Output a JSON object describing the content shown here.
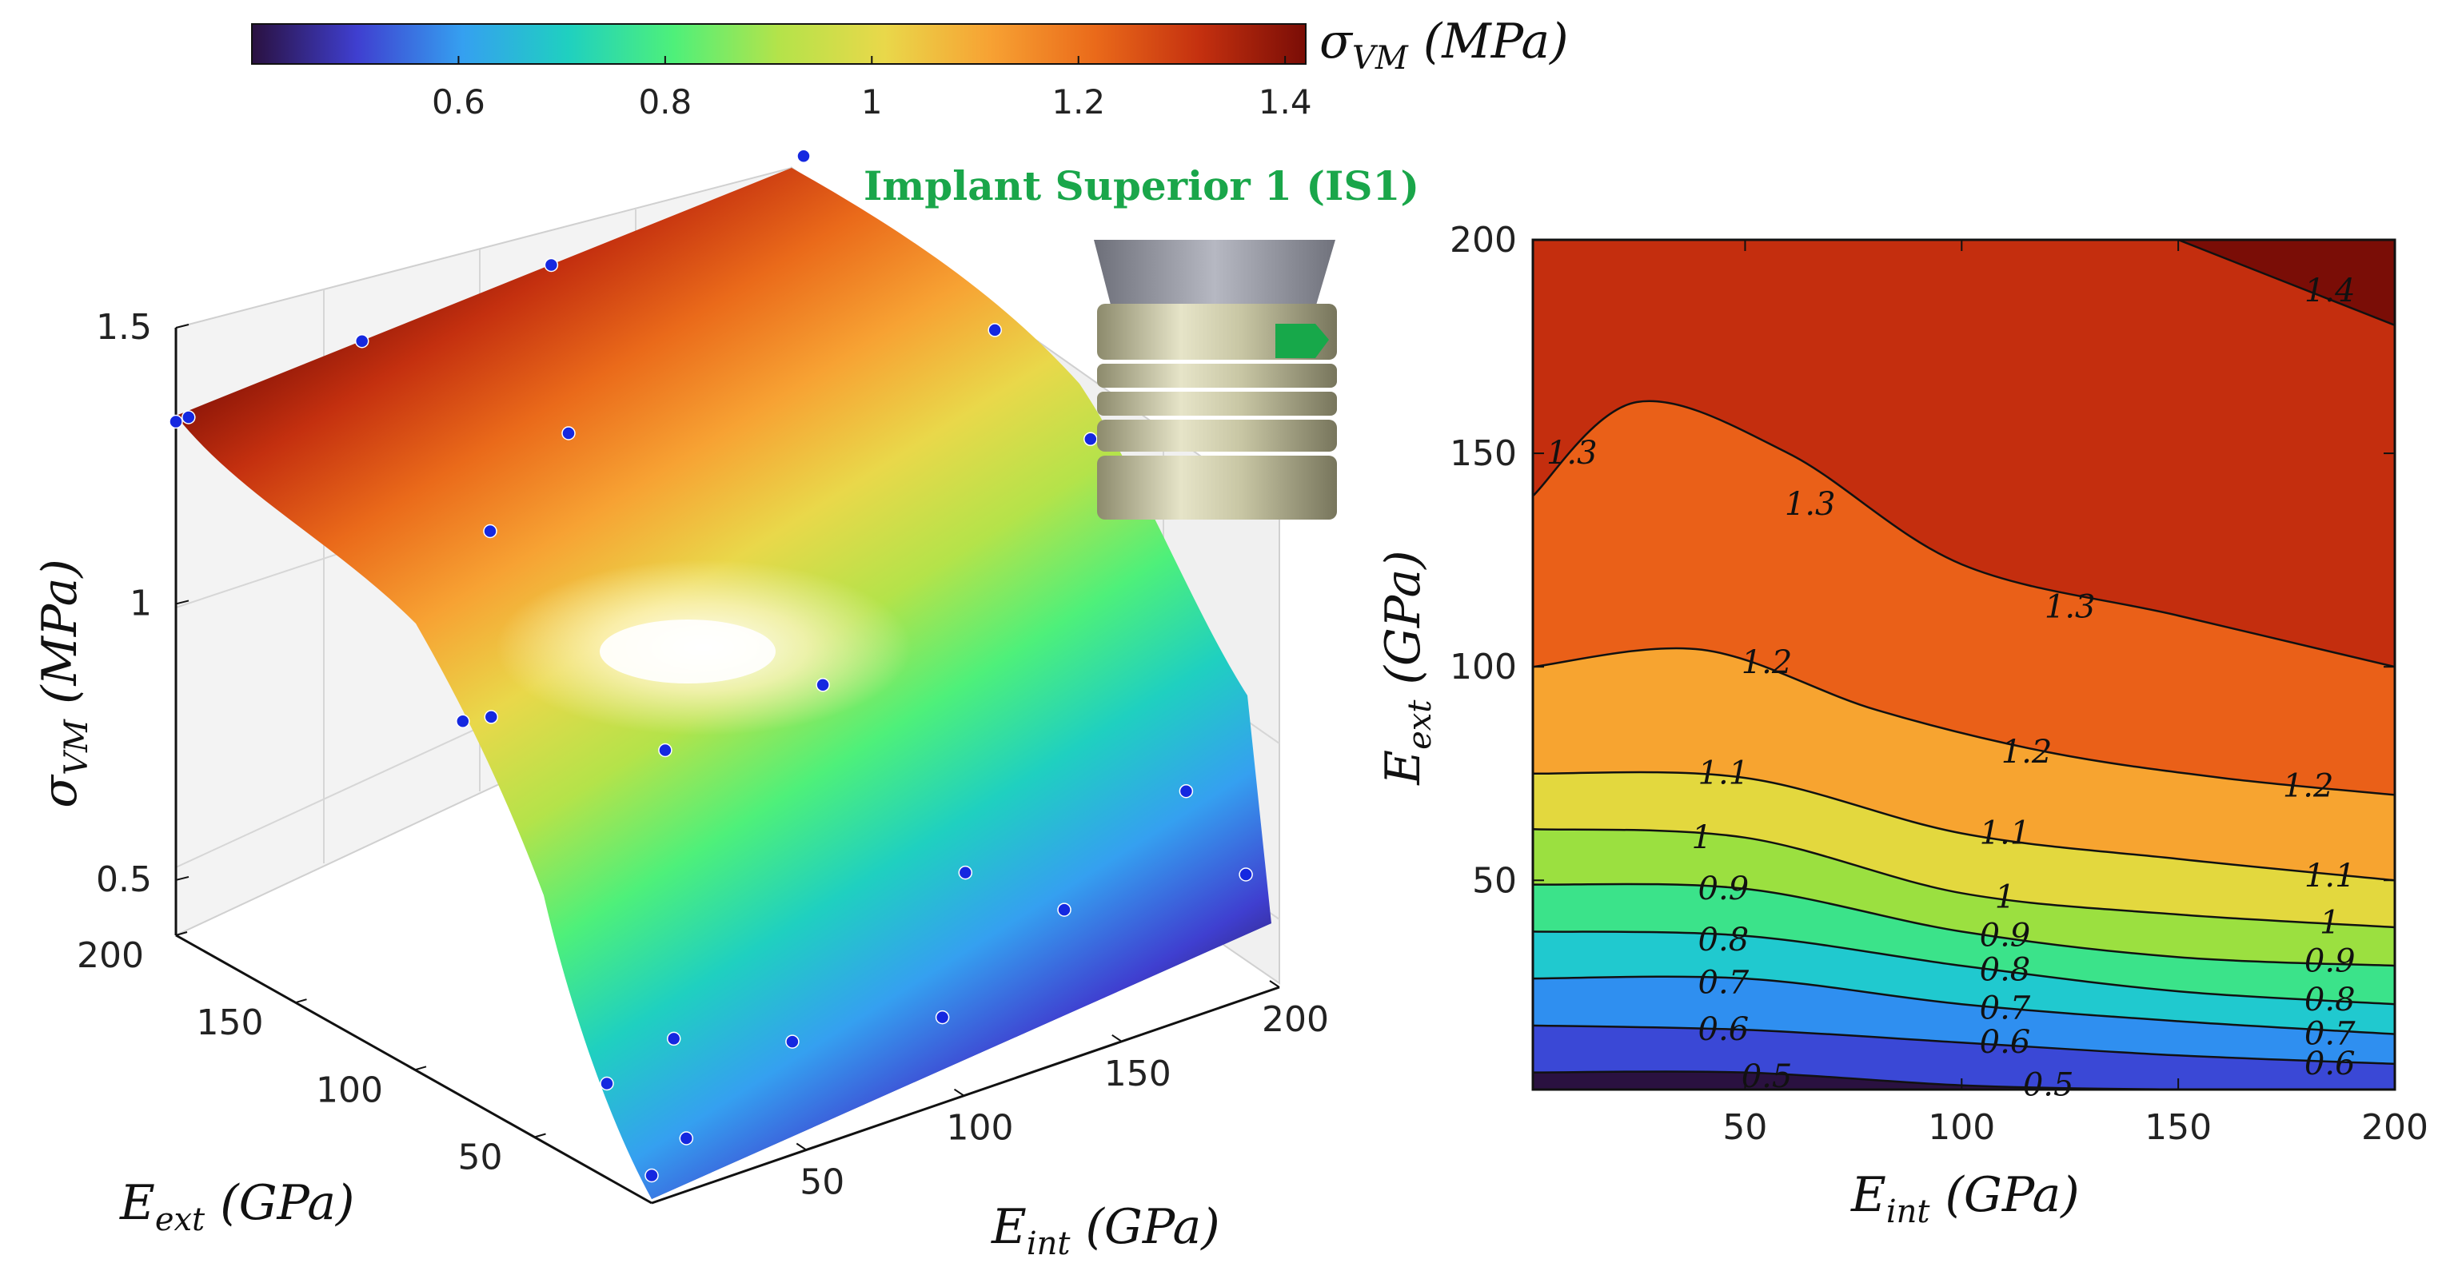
{
  "figure": {
    "colorbar": {
      "label_main": "σ",
      "label_sub": "VM",
      "label_unit": " (MPa)",
      "ticks": [
        "0.6",
        "0.8",
        "1",
        "1.2",
        "1.4"
      ],
      "tick_values": [
        0.6,
        0.8,
        1.0,
        1.2,
        1.4
      ],
      "range": [
        0.4,
        1.42
      ],
      "colormap": [
        "#2a1140",
        "#3f3fd0",
        "#35a0f0",
        "#1fd0c0",
        "#4ef07a",
        "#b4e34a",
        "#e9d84a",
        "#f7a233",
        "#ea6a1a",
        "#c4300f",
        "#7a0d06"
      ]
    },
    "inset": {
      "title": "Implant Superior 1 (IS1)",
      "title_color": "#1aa64a",
      "marker_color": "#17a84a"
    }
  },
  "chart_data": [
    {
      "type": "surface",
      "title": "",
      "xlabel_main": "E",
      "xlabel_sub": "int",
      "xlabel_unit": " (GPa)",
      "ylabel_main": "E",
      "ylabel_sub": "ext",
      "ylabel_unit": " (GPa)",
      "zlabel_main": "σ",
      "zlabel_sub": "VM",
      "zlabel_unit": " (MPa)",
      "x_ticks": [
        "50",
        "100",
        "150",
        "200"
      ],
      "x_tick_values": [
        50,
        100,
        150,
        200
      ],
      "y_ticks": [
        "50",
        "100",
        "150",
        "200"
      ],
      "y_tick_values": [
        50,
        100,
        150,
        200
      ],
      "z_ticks": [
        "0.5",
        "1",
        "1.5"
      ],
      "z_tick_values": [
        0.5,
        1.0,
        1.5
      ],
      "xlim": [
        1,
        200
      ],
      "ylim": [
        1,
        200
      ],
      "zlim": [
        0.4,
        1.5
      ],
      "sample_points": [
        {
          "x": 1,
          "y": 1,
          "z": 0.45
        },
        {
          "x": 15,
          "y": 5,
          "z": 0.48
        },
        {
          "x": 5,
          "y": 25,
          "z": 0.55
        },
        {
          "x": 30,
          "y": 30,
          "z": 0.57
        },
        {
          "x": 60,
          "y": 20,
          "z": 0.53
        },
        {
          "x": 100,
          "y": 10,
          "z": 0.52
        },
        {
          "x": 150,
          "y": 25,
          "z": 0.58
        },
        {
          "x": 200,
          "y": 15,
          "z": 0.57
        },
        {
          "x": 200,
          "y": 40,
          "z": 0.66
        },
        {
          "x": 130,
          "y": 40,
          "z": 0.65
        },
        {
          "x": 1,
          "y": 80,
          "z": 1.08
        },
        {
          "x": 10,
          "y": 80,
          "z": 1.07
        },
        {
          "x": 50,
          "y": 60,
          "z": 0.98
        },
        {
          "x": 100,
          "y": 60,
          "z": 1.0
        },
        {
          "x": 1,
          "y": 200,
          "z": 1.33
        },
        {
          "x": 5,
          "y": 200,
          "z": 1.33
        },
        {
          "x": 60,
          "y": 200,
          "z": 1.36
        },
        {
          "x": 120,
          "y": 200,
          "z": 1.38
        },
        {
          "x": 200,
          "y": 200,
          "z": 1.42
        },
        {
          "x": 200,
          "y": 120,
          "z": 1.3
        },
        {
          "x": 200,
          "y": 80,
          "z": 1.2
        },
        {
          "x": 80,
          "y": 140,
          "z": 1.3
        },
        {
          "x": 40,
          "y": 120,
          "z": 1.25
        }
      ]
    },
    {
      "type": "contour",
      "xlabel_main": "E",
      "xlabel_sub": "int",
      "xlabel_unit": " (GPa)",
      "ylabel_main": "E",
      "ylabel_sub": "ext",
      "ylabel_unit": " (GPa)",
      "x_ticks": [
        "50",
        "100",
        "150",
        "200"
      ],
      "x_tick_values": [
        50,
        100,
        150,
        200
      ],
      "y_ticks": [
        "50",
        "100",
        "150",
        "200"
      ],
      "y_tick_values": [
        50,
        100,
        150,
        200
      ],
      "xlim": [
        1,
        200
      ],
      "ylim": [
        1,
        200
      ],
      "levels": [
        {
          "level": 0.5,
          "label": "0.5",
          "fill": "#2a1140",
          "points": [
            [
              1,
              5
            ],
            [
              50,
              5
            ],
            [
              100,
              2
            ],
            [
              150,
              1
            ],
            [
              200,
              1
            ]
          ],
          "label_pos": [
            [
              55,
              4
            ],
            [
              120,
              2
            ]
          ]
        },
        {
          "level": 0.6,
          "label": "0.6",
          "fill": "#3a48d6",
          "points": [
            [
              1,
              16
            ],
            [
              50,
              15
            ],
            [
              100,
              12
            ],
            [
              150,
              9
            ],
            [
              200,
              7
            ]
          ],
          "label_pos": [
            [
              45,
              15
            ],
            [
              110,
              12
            ],
            [
              185,
              7
            ]
          ]
        },
        {
          "level": 0.7,
          "label": "0.7",
          "fill": "#2f8ff0",
          "points": [
            [
              1,
              27
            ],
            [
              50,
              27
            ],
            [
              100,
              21
            ],
            [
              150,
              17
            ],
            [
              200,
              14
            ]
          ],
          "label_pos": [
            [
              45,
              26
            ],
            [
              110,
              20
            ],
            [
              185,
              14
            ]
          ]
        },
        {
          "level": 0.8,
          "label": "0.8",
          "fill": "#20c9cf",
          "points": [
            [
              1,
              38
            ],
            [
              50,
              37
            ],
            [
              100,
              30
            ],
            [
              150,
              24
            ],
            [
              200,
              21
            ]
          ],
          "label_pos": [
            [
              45,
              36
            ],
            [
              110,
              29
            ],
            [
              185,
              22
            ]
          ]
        },
        {
          "level": 0.9,
          "label": "0.9",
          "fill": "#3be38a",
          "points": [
            [
              1,
              49
            ],
            [
              50,
              48
            ],
            [
              100,
              38
            ],
            [
              150,
              32
            ],
            [
              200,
              30
            ]
          ],
          "label_pos": [
            [
              45,
              48
            ],
            [
              110,
              37
            ],
            [
              185,
              31
            ]
          ]
        },
        {
          "level": 1.0,
          "label": "1",
          "fill": "#9be040",
          "points": [
            [
              1,
              62
            ],
            [
              50,
              60
            ],
            [
              100,
              47
            ],
            [
              150,
              42
            ],
            [
              200,
              39
            ]
          ],
          "label_pos": [
            [
              40,
              60
            ],
            [
              110,
              46
            ],
            [
              185,
              40
            ]
          ]
        },
        {
          "level": 1.1,
          "label": "1.1",
          "fill": "#e3d83e",
          "points": [
            [
              1,
              75
            ],
            [
              50,
              74
            ],
            [
              100,
              61
            ],
            [
              150,
              55
            ],
            [
              200,
              50
            ]
          ],
          "label_pos": [
            [
              45,
              75
            ],
            [
              110,
              61
            ],
            [
              185,
              51
            ]
          ]
        },
        {
          "level": 1.2,
          "label": "1.2",
          "fill": "#f7a430",
          "points": [
            [
              1,
              100
            ],
            [
              40,
              104
            ],
            [
              80,
              90
            ],
            [
              120,
              80
            ],
            [
              160,
              74
            ],
            [
              200,
              70
            ]
          ],
          "label_pos": [
            [
              55,
              101
            ],
            [
              115,
              80
            ],
            [
              180,
              72
            ]
          ]
        },
        {
          "level": 1.3,
          "label": "1.3",
          "fill": "#ea6018",
          "points": [
            [
              1,
              140
            ],
            [
              25,
              162
            ],
            [
              60,
              150
            ],
            [
              100,
              124
            ],
            [
              150,
              112
            ],
            [
              200,
              100
            ]
          ],
          "label_pos": [
            [
              10,
              150
            ],
            [
              65,
              138
            ],
            [
              125,
              114
            ]
          ]
        },
        {
          "level": 1.4,
          "label": "1.4",
          "fill": "#c42e0e",
          "points": [
            [
              150,
              200
            ],
            [
              200,
              180
            ]
          ],
          "label_pos": [
            [
              185,
              188
            ]
          ]
        }
      ],
      "top_fill": "#7a0d06"
    }
  ]
}
